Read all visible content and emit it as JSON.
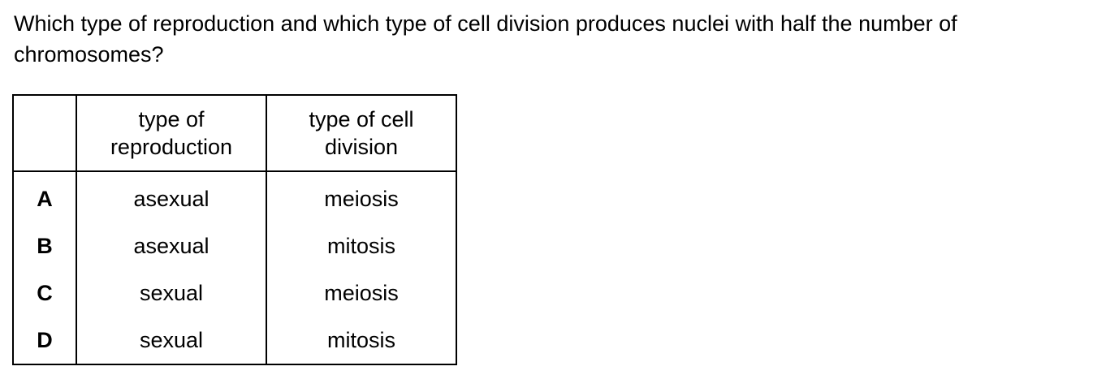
{
  "question": {
    "text": "Which type of reproduction and which type of cell division produces nuclei with half the number of chromosomes?"
  },
  "table": {
    "headers": {
      "letter": "",
      "reproduction": "type of reproduction",
      "division": "type of cell division"
    },
    "rows": [
      {
        "letter": "A",
        "reproduction": "asexual",
        "division": "meiosis"
      },
      {
        "letter": "B",
        "reproduction": "asexual",
        "division": "mitosis"
      },
      {
        "letter": "C",
        "reproduction": "sexual",
        "division": "meiosis"
      },
      {
        "letter": "D",
        "reproduction": "sexual",
        "division": "mitosis"
      }
    ]
  }
}
